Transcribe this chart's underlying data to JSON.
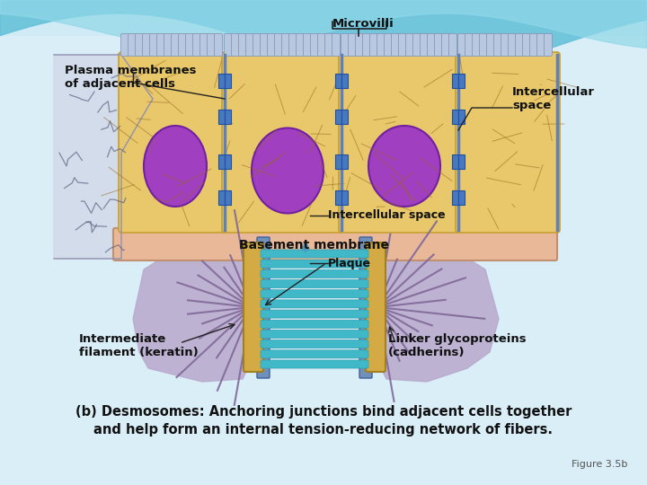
{
  "figsize": [
    7.2,
    5.4
  ],
  "dpi": 100,
  "bg_color": "#c8e8f0",
  "wave_color1": "#7ecfe0",
  "wave_color2": "#a0d8e8",
  "cell_fill": "#e8c86a",
  "cell_edge": "#c8a030",
  "nucleus_fill": "#a040c0",
  "nucleus_edge": "#7020a0",
  "membrane_color": "#7090c0",
  "desmosome_fill": "#5080c0",
  "basement_fill": "#e8b898",
  "basement_edge": "#c09070",
  "plaque_fill": "#d4aa44",
  "plaque_edge": "#a08020",
  "linker_color": "#40b8c8",
  "filament_color": "#806898",
  "cell_body_lower_fill": "#b8a8cc",
  "cell_body_lower_edge": "#7060a0",
  "arrow_color": "#5098b8",
  "label_color": "#111111",
  "caption_color": "#111111",
  "figure_label": "Figure 3.5b",
  "labels": {
    "plasma_membranes": "Plasma membranes\nof adjacent cells",
    "microvilli": "Microvilli",
    "intercellular_space_top": "Intercellular\nspace",
    "basement_membrane": "Basement membrane",
    "intercellular_space_bottom": "Intercellular space",
    "plaque": "Plaque",
    "intermediate_filament": "Intermediate\nfilament (keratin)",
    "linker_glycoproteins": "Linker glycoproteins\n(cadherins)"
  },
  "caption_line1": "(b) Desmosomes: Anchoring junctions bind adjacent cells together",
  "caption_line2": "and help form an internal tension-reducing network of fibers."
}
